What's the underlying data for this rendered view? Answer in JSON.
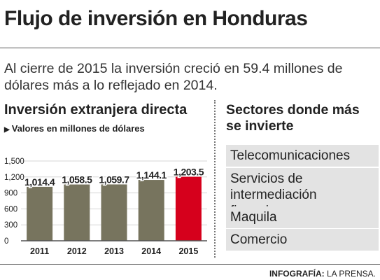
{
  "header": {
    "title": "Flujo de inversión en Honduras",
    "intro": "Al cierre de 2015 la inversión creció en 59.4 millones de dólares más a lo reflejado en 2014."
  },
  "chart_panel": {
    "title": "Inversión extranjera directa",
    "note": "Valores en millones de dólares"
  },
  "chart_data": {
    "type": "bar",
    "title": "Inversión extranjera directa",
    "subtitle": "Valores en millones de dólares",
    "categories": [
      "2011",
      "2012",
      "2013",
      "2014",
      "2015"
    ],
    "values": [
      1014.4,
      1058.5,
      1059.7,
      1144.1,
      1203.5
    ],
    "value_labels": [
      "1,014.4",
      "1,058.5",
      "1,059.7",
      "1,144.1",
      "1,203.5"
    ],
    "yticks": [
      0,
      300,
      600,
      900,
      1200,
      1500
    ],
    "ytick_labels": [
      "0",
      "300",
      "600",
      "900",
      "1,200",
      "1,500"
    ],
    "ylim": [
      0,
      1500
    ],
    "grid": true,
    "colors": {
      "default": "#77745e",
      "highlight": "#d6001c"
    },
    "highlight_index": 4
  },
  "sectors": {
    "title": "Sectores donde más se invierte",
    "items": [
      "Telecomunicaciones",
      "Servicios de intermediación financiera",
      "Maquila",
      "Comercio"
    ]
  },
  "credit": {
    "label": "INFOGRAFÍA:",
    "source": "LA PRENSA."
  }
}
